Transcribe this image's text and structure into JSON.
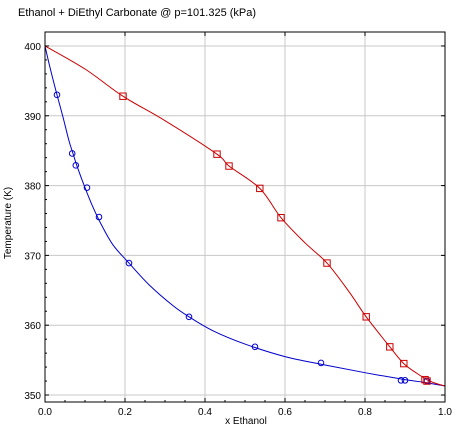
{
  "title": "Ethanol + DiEthyl Carbonate @ p=101.325 (kPa)",
  "chart_data": {
    "type": "scatter",
    "title": "Ethanol + DiEthyl Carbonate @ p=101.325 (kPa)",
    "xlabel": "x Ethanol",
    "ylabel": "Temperature (K)",
    "xlim": [
      0,
      1
    ],
    "ylim": [
      349,
      402
    ],
    "x_ticks": [
      "0.0",
      "0.2",
      "0.4",
      "0.6",
      "0.8",
      "1.0"
    ],
    "y_ticks": [
      "350",
      "360",
      "370",
      "380",
      "390",
      "400"
    ],
    "x_tick_values": [
      0,
      0.2,
      0.4,
      0.6,
      0.8,
      1.0
    ],
    "y_tick_values": [
      350,
      360,
      370,
      380,
      390,
      400
    ],
    "grid": true,
    "series": [
      {
        "kind": "points",
        "marker": "circle",
        "color": "#0000cc",
        "x": [
          0.03,
          0.068,
          0.077,
          0.105,
          0.135,
          0.21,
          0.36,
          0.525,
          0.69,
          0.89,
          0.9,
          0.955
        ],
        "y": [
          393.0,
          384.6,
          382.9,
          379.7,
          375.5,
          368.9,
          361.2,
          356.9,
          354.6,
          352.1,
          352.1,
          352.0
        ]
      },
      {
        "kind": "points",
        "marker": "square",
        "color": "#cc0000",
        "x": [
          0.195,
          0.43,
          0.46,
          0.537,
          0.59,
          0.705,
          0.803,
          0.862,
          0.897,
          0.95,
          0.955
        ],
        "y": [
          392.8,
          384.5,
          382.8,
          379.6,
          375.4,
          368.9,
          361.2,
          356.9,
          354.5,
          352.2,
          352.0
        ]
      },
      {
        "kind": "line",
        "color": "#0000cc",
        "x": [
          0.0,
          0.01,
          0.02,
          0.03,
          0.045,
          0.06,
          0.07,
          0.08,
          0.1,
          0.12,
          0.14,
          0.17,
          0.21,
          0.26,
          0.32,
          0.36,
          0.42,
          0.5,
          0.6,
          0.7,
          0.8,
          0.9,
          0.95,
          1.0
        ],
        "y": [
          400.0,
          397.5,
          395.2,
          393.0,
          389.8,
          386.4,
          384.6,
          382.8,
          379.7,
          376.9,
          374.5,
          371.5,
          368.9,
          365.8,
          362.8,
          361.2,
          359.2,
          357.3,
          355.5,
          354.3,
          353.2,
          352.2,
          351.8,
          351.3
        ]
      },
      {
        "kind": "line",
        "color": "#cc0000",
        "x": [
          0.0,
          0.1,
          0.195,
          0.3,
          0.43,
          0.46,
          0.537,
          0.59,
          0.65,
          0.705,
          0.76,
          0.803,
          0.862,
          0.897,
          0.93,
          0.955,
          0.975,
          1.0
        ],
        "y": [
          400.0,
          396.7,
          392.8,
          389.3,
          384.5,
          382.8,
          379.6,
          375.4,
          371.8,
          368.9,
          364.8,
          361.2,
          356.9,
          354.5,
          353.1,
          352.2,
          351.7,
          351.3
        ]
      }
    ]
  }
}
